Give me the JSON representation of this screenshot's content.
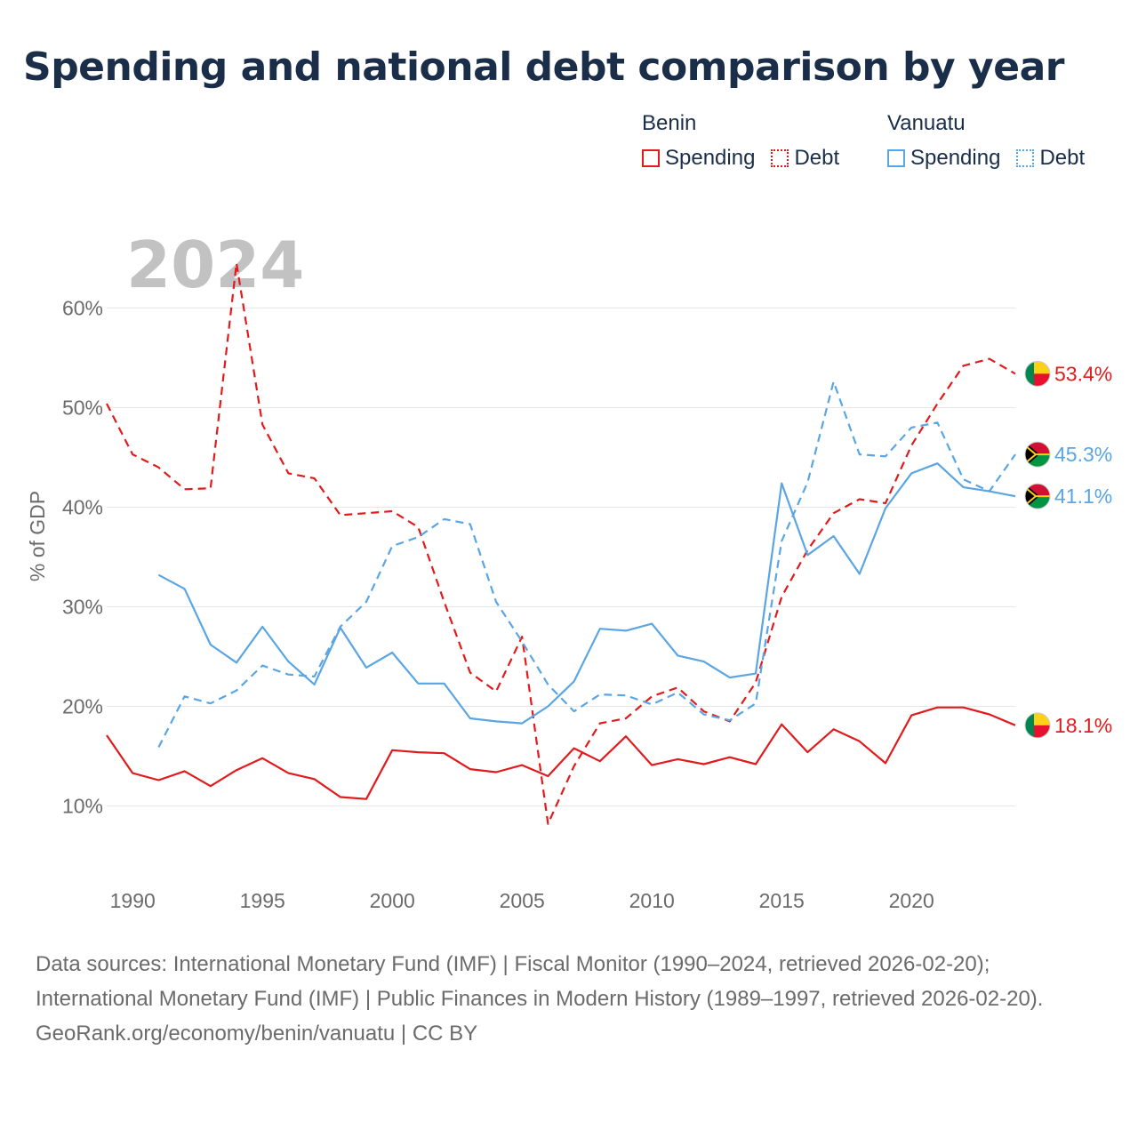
{
  "title": "Spending and national debt comparison by year",
  "legend": {
    "groups": [
      {
        "country": "Benin",
        "items": [
          {
            "label": "Spending",
            "style": "solid"
          },
          {
            "label": "Debt",
            "style": "dotted"
          }
        ],
        "color": "#e31a1c"
      },
      {
        "country": "Vanuatu",
        "items": [
          {
            "label": "Spending",
            "style": "solid"
          },
          {
            "label": "Debt",
            "style": "dotted"
          }
        ],
        "color": "#5aa5e3"
      }
    ]
  },
  "chart_data": {
    "type": "line",
    "year_label": "2024",
    "ylabel": "% of GDP",
    "xlim": [
      1989,
      2024
    ],
    "ylim": [
      3,
      67
    ],
    "yticks": [
      10,
      20,
      30,
      40,
      50,
      60
    ],
    "ytick_labels": [
      "10%",
      "20%",
      "30%",
      "40%",
      "50%",
      "60%"
    ],
    "xticks": [
      1990,
      1995,
      2000,
      2005,
      2010,
      2015,
      2020
    ],
    "xtick_labels": [
      "1990",
      "1995",
      "2000",
      "2005",
      "2010",
      "2015",
      "2020"
    ],
    "series": [
      {
        "name": "Benin Spending",
        "country": "Benin",
        "color": "#e31a1c",
        "dash": false,
        "end_label": "18.1%",
        "x": [
          1989,
          1990,
          1991,
          1992,
          1993,
          1994,
          1995,
          1996,
          1997,
          1998,
          1999,
          2000,
          2001,
          2002,
          2003,
          2004,
          2005,
          2006,
          2007,
          2008,
          2009,
          2010,
          2011,
          2012,
          2013,
          2014,
          2015,
          2016,
          2017,
          2018,
          2019,
          2020,
          2021,
          2022,
          2023,
          2024
        ],
        "values": [
          17.1,
          13.3,
          12.6,
          13.5,
          12.0,
          13.6,
          14.8,
          13.3,
          12.7,
          10.9,
          10.7,
          15.6,
          15.4,
          15.3,
          13.7,
          13.4,
          14.1,
          13.0,
          15.8,
          14.5,
          17.0,
          14.1,
          14.7,
          14.2,
          14.9,
          14.2,
          18.2,
          15.4,
          17.7,
          16.5,
          14.3,
          19.1,
          19.9,
          19.9,
          19.2,
          18.1
        ]
      },
      {
        "name": "Benin Debt",
        "country": "Benin",
        "color": "#e31a1c",
        "dash": true,
        "end_label": "53.4%",
        "x": [
          1989,
          1990,
          1991,
          1992,
          1993,
          1994,
          1995,
          1996,
          1997,
          1998,
          1999,
          2000,
          2001,
          2002,
          2003,
          2004,
          2005,
          2006,
          2007,
          2008,
          2009,
          2010,
          2011,
          2012,
          2013,
          2014,
          2015,
          2016,
          2017,
          2018,
          2019,
          2020,
          2021,
          2022,
          2023,
          2024
        ],
        "values": [
          50.4,
          45.3,
          44.0,
          41.8,
          41.9,
          64.5,
          48.3,
          43.4,
          42.9,
          39.2,
          39.4,
          39.6,
          38.0,
          30.5,
          23.4,
          21.5,
          27.0,
          8.2,
          14.0,
          18.3,
          18.8,
          21.0,
          21.9,
          19.5,
          18.5,
          22.4,
          31.0,
          35.7,
          39.4,
          40.8,
          40.4,
          46.2,
          50.4,
          54.2,
          54.9,
          53.4
        ]
      },
      {
        "name": "Vanuatu Spending",
        "country": "Vanuatu",
        "color": "#5aa5e3",
        "dash": false,
        "end_label": "41.1%",
        "x": [
          1991,
          1992,
          1993,
          1994,
          1995,
          1996,
          1997,
          1998,
          1999,
          2000,
          2001,
          2002,
          2003,
          2004,
          2005,
          2006,
          2007,
          2008,
          2009,
          2010,
          2011,
          2012,
          2013,
          2014,
          2015,
          2016,
          2017,
          2018,
          2019,
          2020,
          2021,
          2022,
          2023,
          2024
        ],
        "values": [
          33.2,
          31.8,
          26.2,
          24.4,
          28.0,
          24.5,
          22.2,
          27.9,
          23.9,
          25.4,
          22.3,
          22.3,
          18.8,
          18.5,
          18.3,
          20.0,
          22.5,
          27.8,
          27.6,
          28.3,
          25.1,
          24.5,
          22.9,
          23.3,
          42.4,
          35.2,
          37.1,
          33.3,
          39.9,
          43.4,
          44.4,
          42.0,
          41.6,
          41.1
        ]
      },
      {
        "name": "Vanuatu Debt",
        "country": "Vanuatu",
        "color": "#5aa5e3",
        "dash": true,
        "end_label": "45.3%",
        "x": [
          1991,
          1992,
          1993,
          1994,
          1995,
          1996,
          1997,
          1998,
          1999,
          2000,
          2001,
          2002,
          2003,
          2004,
          2005,
          2006,
          2007,
          2008,
          2009,
          2010,
          2011,
          2012,
          2013,
          2014,
          2015,
          2016,
          2017,
          2018,
          2019,
          2020,
          2021,
          2022,
          2023,
          2024
        ],
        "values": [
          15.9,
          21.0,
          20.3,
          21.6,
          24.1,
          23.2,
          23.0,
          28.0,
          30.5,
          36.1,
          37.0,
          38.8,
          38.3,
          30.5,
          26.5,
          22.2,
          19.5,
          21.2,
          21.1,
          20.2,
          21.4,
          19.2,
          18.6,
          20.3,
          36.6,
          42.5,
          52.6,
          45.3,
          45.1,
          48.0,
          48.5,
          42.8,
          41.6,
          45.3
        ]
      }
    ]
  },
  "flags": {
    "Benin": "benin-flag-icon",
    "Vanuatu": "vanuatu-flag-icon"
  },
  "footer": {
    "sources": "Data sources: International Monetary Fund (IMF) | Fiscal Monitor (1990–2024, retrieved 2026-02-20); International Monetary Fund (IMF) | Public Finances in Modern History (1989–1997, retrieved 2026-02-20).",
    "credit": "GeoRank.org/economy/benin/vanuatu | CC BY"
  }
}
